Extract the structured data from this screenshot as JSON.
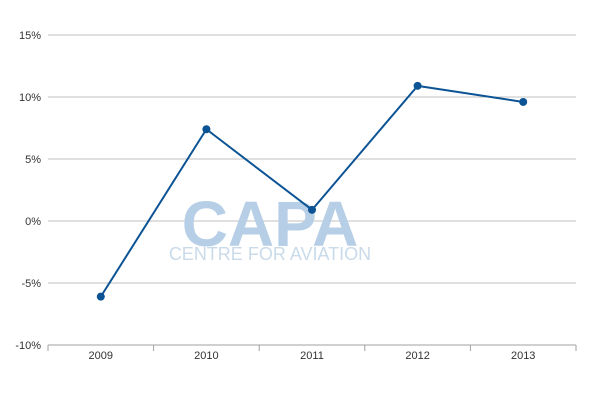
{
  "chart_data": {
    "type": "line",
    "title": "",
    "xlabel": "",
    "ylabel": "",
    "categories": [
      "2009",
      "2010",
      "2011",
      "2012",
      "2013"
    ],
    "values": [
      -6.1,
      7.4,
      0.9,
      10.9,
      9.6
    ],
    "ylim": [
      -10,
      15
    ],
    "y_ticks": [
      15,
      10,
      5,
      0,
      -5,
      -10
    ],
    "y_tick_labels": [
      "15%",
      "10%",
      "5%",
      "0%",
      "-5%",
      "-10%"
    ],
    "grid": "horizontal",
    "legend": "none",
    "line_color": "#0b5394",
    "grid_color": "#c0c0c0"
  },
  "watermark": {
    "brand": "CAPA",
    "tagline": "CENTRE FOR AVIATION"
  }
}
